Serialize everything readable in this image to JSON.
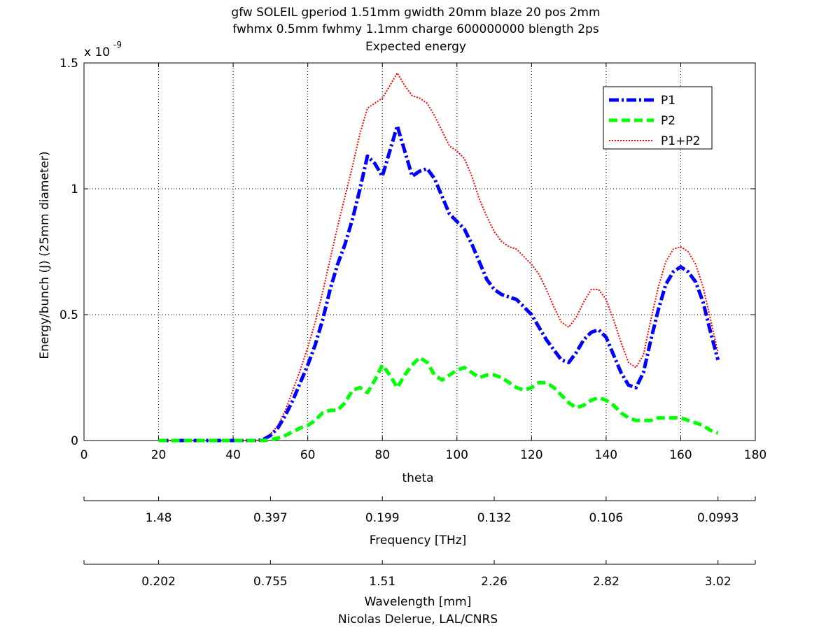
{
  "chart_data": {
    "type": "line",
    "title": [
      "gfw SOLEIL gperiod 1.51mm gwidth 20mm blaze 20 pos 2mm",
      "fwhmx 0.5mm fwhmy 1.1mm charge 600000000 blength 2ps",
      "Expected energy"
    ],
    "xlabel": "theta",
    "ylabel": "Energy/bunch (J) (25mm diameter)",
    "y_exponent_label": "x 10",
    "y_exponent_power": "-9",
    "xlim": [
      0,
      180
    ],
    "ylim": [
      0,
      1.5
    ],
    "xticks": [
      0,
      20,
      40,
      60,
      80,
      100,
      120,
      140,
      160,
      180
    ],
    "xtick_labels": [
      "0",
      "20",
      "40",
      "60",
      "80",
      "100",
      "120",
      "140",
      "160",
      "180"
    ],
    "yticks": [
      0,
      0.5,
      1,
      1.5
    ],
    "ytick_labels": [
      "0",
      "0.5",
      "1",
      "1.5"
    ],
    "grid": true,
    "legend_position": "top-right",
    "x": [
      20,
      22,
      24,
      26,
      28,
      30,
      32,
      34,
      36,
      38,
      40,
      42,
      44,
      46,
      48,
      50,
      52,
      54,
      56,
      58,
      60,
      62,
      64,
      66,
      68,
      70,
      72,
      74,
      76,
      78,
      80,
      82,
      84,
      86,
      88,
      90,
      92,
      94,
      96,
      98,
      100,
      102,
      104,
      106,
      108,
      110,
      112,
      114,
      116,
      118,
      120,
      122,
      124,
      126,
      128,
      130,
      132,
      134,
      136,
      138,
      140,
      142,
      144,
      146,
      148,
      150,
      152,
      154,
      156,
      158,
      160,
      162,
      164,
      166,
      168,
      170
    ],
    "series": [
      {
        "name": "P1",
        "color": "#0000ff",
        "style": "dash-dot",
        "values": [
          0,
          0,
          0,
          0,
          0,
          0,
          0,
          0,
          0,
          0,
          0,
          0,
          0,
          0,
          0.003,
          0.02,
          0.05,
          0.1,
          0.16,
          0.23,
          0.3,
          0.38,
          0.48,
          0.6,
          0.7,
          0.78,
          0.88,
          1.0,
          1.13,
          1.1,
          1.05,
          1.15,
          1.25,
          1.15,
          1.05,
          1.07,
          1.08,
          1.04,
          0.97,
          0.9,
          0.87,
          0.84,
          0.78,
          0.71,
          0.64,
          0.6,
          0.58,
          0.57,
          0.56,
          0.53,
          0.5,
          0.45,
          0.4,
          0.36,
          0.32,
          0.31,
          0.35,
          0.4,
          0.43,
          0.44,
          0.41,
          0.34,
          0.27,
          0.22,
          0.21,
          0.27,
          0.4,
          0.52,
          0.62,
          0.67,
          0.69,
          0.67,
          0.63,
          0.55,
          0.43,
          0.32
        ]
      },
      {
        "name": "P2",
        "color": "#00ff00",
        "style": "dashed",
        "values": [
          0,
          0,
          0,
          0,
          0,
          0,
          0,
          0,
          0,
          0,
          0,
          0,
          0,
          0,
          0,
          0.003,
          0.01,
          0.02,
          0.035,
          0.05,
          0.06,
          0.08,
          0.11,
          0.12,
          0.12,
          0.15,
          0.2,
          0.21,
          0.19,
          0.24,
          0.3,
          0.26,
          0.21,
          0.26,
          0.3,
          0.33,
          0.31,
          0.26,
          0.24,
          0.26,
          0.28,
          0.29,
          0.27,
          0.25,
          0.26,
          0.26,
          0.25,
          0.23,
          0.21,
          0.2,
          0.21,
          0.23,
          0.23,
          0.21,
          0.18,
          0.15,
          0.13,
          0.14,
          0.16,
          0.17,
          0.16,
          0.14,
          0.11,
          0.09,
          0.08,
          0.08,
          0.08,
          0.09,
          0.09,
          0.09,
          0.09,
          0.08,
          0.07,
          0.06,
          0.04,
          0.03
        ]
      },
      {
        "name": "P1+P2",
        "color": "#ff0000",
        "style": "dotted",
        "values": [
          0,
          0,
          0,
          0,
          0,
          0,
          0,
          0,
          0,
          0,
          0,
          0,
          0,
          0,
          0.003,
          0.025,
          0.06,
          0.12,
          0.2,
          0.28,
          0.37,
          0.47,
          0.59,
          0.72,
          0.85,
          0.97,
          1.09,
          1.22,
          1.32,
          1.34,
          1.36,
          1.41,
          1.46,
          1.41,
          1.37,
          1.36,
          1.34,
          1.29,
          1.23,
          1.17,
          1.15,
          1.12,
          1.05,
          0.96,
          0.89,
          0.83,
          0.79,
          0.77,
          0.76,
          0.73,
          0.7,
          0.66,
          0.6,
          0.53,
          0.47,
          0.45,
          0.49,
          0.55,
          0.6,
          0.6,
          0.56,
          0.48,
          0.39,
          0.31,
          0.29,
          0.34,
          0.48,
          0.61,
          0.71,
          0.76,
          0.77,
          0.75,
          0.7,
          0.61,
          0.48,
          0.35
        ]
      }
    ],
    "secondary_axes": [
      {
        "label": "Frequency [THz]",
        "tick_labels": [
          "1.48",
          "0.397",
          "0.199",
          "0.132",
          "0.106",
          "0.0993"
        ],
        "tick_positions_theta": [
          20,
          50,
          80,
          110,
          140,
          170
        ],
        "axis_range_theta": [
          0,
          180
        ]
      },
      {
        "label": "Wavelength [mm]",
        "tick_labels": [
          "0.202",
          "0.755",
          "1.51",
          "2.26",
          "2.82",
          "3.02"
        ],
        "tick_positions_theta": [
          20,
          50,
          80,
          110,
          140,
          170
        ],
        "axis_range_theta": [
          0,
          180
        ]
      }
    ],
    "footer": "Nicolas Delerue, LAL/CNRS"
  }
}
